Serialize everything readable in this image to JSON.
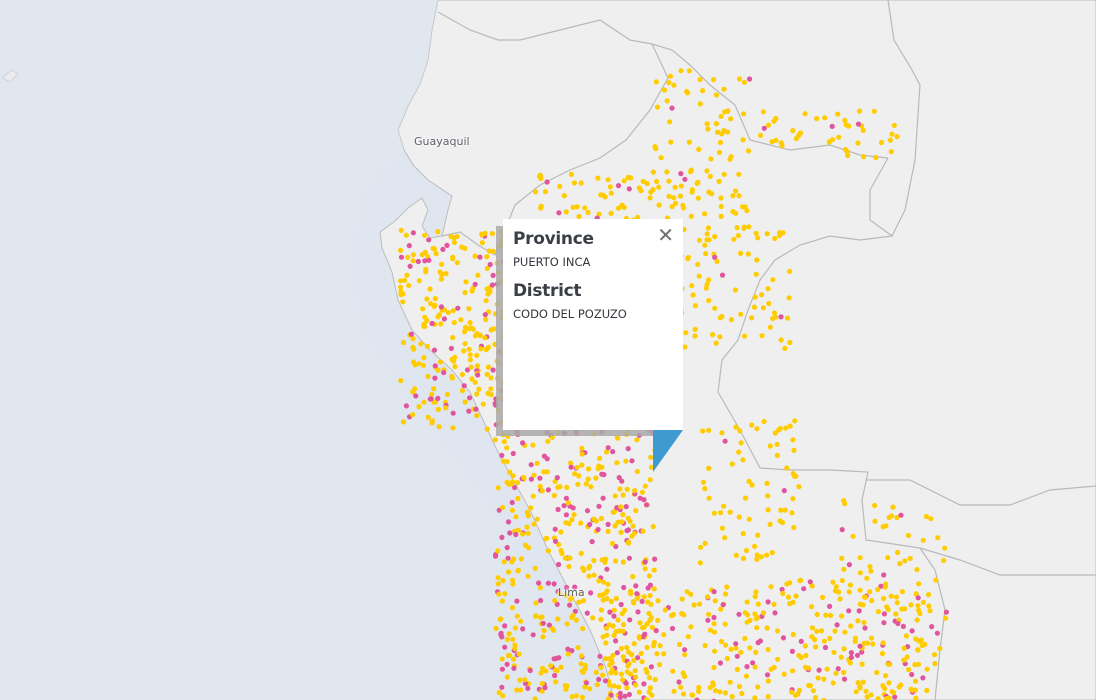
{
  "map": {
    "labels": [
      {
        "name": "Guayaquil"
      },
      {
        "name": "Lima"
      }
    ],
    "point_colors": {
      "primary": "#ffcc00",
      "secondary": "#e0559e"
    }
  },
  "popup": {
    "fields": [
      {
        "label": "Province",
        "value": "PUERTO INCA"
      },
      {
        "label": "District",
        "value": "CODO DEL POZUZO"
      }
    ],
    "close_icon": "close-icon",
    "pointer_color": "#3d9bd1"
  }
}
